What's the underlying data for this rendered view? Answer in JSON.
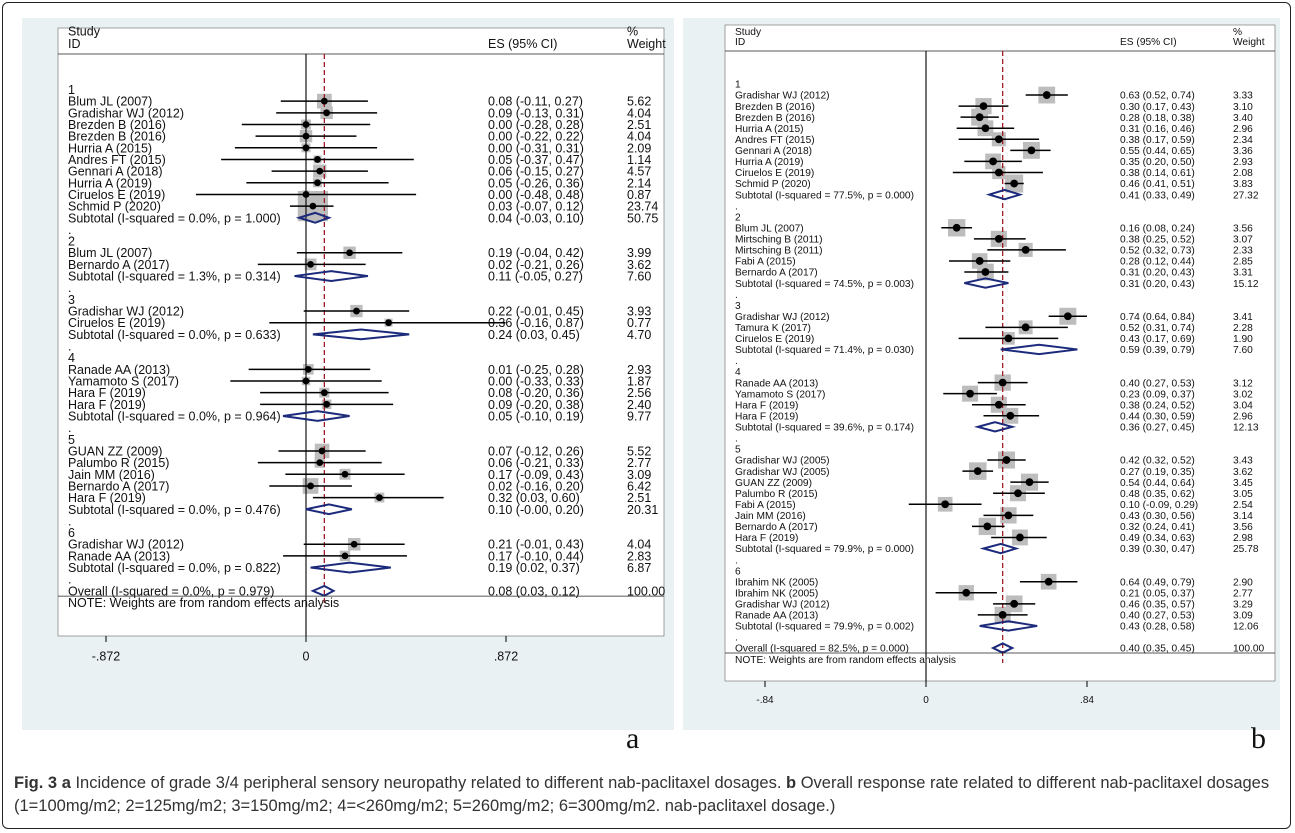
{
  "figure": {
    "caption_label": "Fig. 3",
    "caption_parts": [
      {
        "bold": true,
        "text": "a"
      },
      {
        "bold": false,
        "text": " Incidence of grade 3/4 peripheral sensory neuropathy related to different nab-paclitaxel dosages. "
      },
      {
        "bold": true,
        "text": "b"
      },
      {
        "bold": false,
        "text": " Overall response rate related to different nab-paclitaxel dosages (1=100mg/m2; 2=125mg/m2; 3=150mg/m2; 4=<260mg/m2; 5=260mg/m2; 6=300mg/m2. nab-paclitaxel dosage.)"
      }
    ]
  },
  "colors": {
    "panel_bg": "#eaf1f3",
    "plot_bg": "#ffffff",
    "weight_box": "#bdbdbd",
    "diamond": "#1c2a7c",
    "dashed_line": "#a01c2a",
    "point": "#000000"
  },
  "chart_data": [
    {
      "type": "forest",
      "panel_label": "a",
      "header": {
        "study": "Study",
        "id": "ID",
        "es": "ES (95% CI)",
        "pct": "%",
        "weight": "Weight"
      },
      "xlim": [
        -0.872,
        0.872
      ],
      "ticks": [
        "-.872",
        "0",
        ".872"
      ],
      "tick_values": [
        -0.872,
        0,
        0.872
      ],
      "overall_es": 0.08,
      "note": "NOTE: Weights are from random effects analysis",
      "groups": [
        {
          "label": "1",
          "studies": [
            {
              "name": "Blum JL (2007)",
              "es": 0.08,
              "lo": -0.11,
              "hi": 0.27,
              "ci": "0.08 (-0.11, 0.27)",
              "weight": "5.62"
            },
            {
              "name": "Gradishar WJ (2012)",
              "es": 0.09,
              "lo": -0.13,
              "hi": 0.31,
              "ci": "0.09 (-0.13, 0.31)",
              "weight": "4.04"
            },
            {
              "name": "Brezden B (2016)",
              "es": 0.0,
              "lo": -0.28,
              "hi": 0.28,
              "ci": "0.00 (-0.28, 0.28)",
              "weight": "2.51"
            },
            {
              "name": "Brezden B (2016)",
              "es": 0.0,
              "lo": -0.22,
              "hi": 0.22,
              "ci": "0.00 (-0.22, 0.22)",
              "weight": "4.04"
            },
            {
              "name": "Hurria A (2015)",
              "es": 0.0,
              "lo": -0.31,
              "hi": 0.31,
              "ci": "0.00 (-0.31, 0.31)",
              "weight": "2.09"
            },
            {
              "name": "Andres FT (2015)",
              "es": 0.05,
              "lo": -0.37,
              "hi": 0.47,
              "ci": "0.05 (-0.37, 0.47)",
              "weight": "1.14"
            },
            {
              "name": "Gennari A (2018)",
              "es": 0.06,
              "lo": -0.15,
              "hi": 0.27,
              "ci": "0.06 (-0.15, 0.27)",
              "weight": "4.57"
            },
            {
              "name": "Hurria A (2019)",
              "es": 0.05,
              "lo": -0.26,
              "hi": 0.36,
              "ci": "0.05 (-0.26, 0.36)",
              "weight": "2.14"
            },
            {
              "name": "Ciruelos E (2019)",
              "es": 0.0,
              "lo": -0.48,
              "hi": 0.48,
              "ci": "0.00 (-0.48, 0.48)",
              "weight": "0.87"
            },
            {
              "name": "Schmid P (2020)",
              "es": 0.03,
              "lo": -0.07,
              "hi": 0.12,
              "ci": "0.03 (-0.07, 0.12)",
              "weight": "23.74"
            }
          ],
          "subtotal": {
            "label": "Subtotal  (I-squared = 0.0%, p = 1.000)",
            "es": 0.04,
            "lo": -0.03,
            "hi": 0.1,
            "ci": "0.04 (-0.03, 0.10)",
            "weight": "50.75"
          }
        },
        {
          "label": "2",
          "studies": [
            {
              "name": "Blum JL (2007)",
              "es": 0.19,
              "lo": -0.04,
              "hi": 0.42,
              "ci": "0.19 (-0.04, 0.42)",
              "weight": "3.99"
            },
            {
              "name": "Bernardo A (2017)",
              "es": 0.02,
              "lo": -0.21,
              "hi": 0.26,
              "ci": "0.02 (-0.21, 0.26)",
              "weight": "3.62"
            }
          ],
          "subtotal": {
            "label": "Subtotal  (I-squared = 1.3%, p = 0.314)",
            "es": 0.11,
            "lo": -0.05,
            "hi": 0.27,
            "ci": "0.11 (-0.05, 0.27)",
            "weight": "7.60"
          }
        },
        {
          "label": "3",
          "studies": [
            {
              "name": "Gradishar WJ (2012)",
              "es": 0.22,
              "lo": -0.01,
              "hi": 0.45,
              "ci": "0.22 (-0.01, 0.45)",
              "weight": "3.93"
            },
            {
              "name": "Ciruelos E (2019)",
              "es": 0.36,
              "lo": -0.16,
              "hi": 0.87,
              "ci": "0.36 (-0.16, 0.87)",
              "weight": "0.77"
            }
          ],
          "subtotal": {
            "label": "Subtotal  (I-squared = 0.0%, p = 0.633)",
            "es": 0.24,
            "lo": 0.03,
            "hi": 0.45,
            "ci": "0.24 (0.03, 0.45)",
            "weight": "4.70"
          }
        },
        {
          "label": "4",
          "studies": [
            {
              "name": "Ranade AA (2013)",
              "es": 0.01,
              "lo": -0.25,
              "hi": 0.28,
              "ci": "0.01 (-0.25, 0.28)",
              "weight": "2.93"
            },
            {
              "name": "Yamamoto S (2017)",
              "es": 0.0,
              "lo": -0.33,
              "hi": 0.33,
              "ci": "0.00 (-0.33, 0.33)",
              "weight": "1.87"
            },
            {
              "name": "Hara F (2019)",
              "es": 0.08,
              "lo": -0.2,
              "hi": 0.36,
              "ci": "0.08 (-0.20, 0.36)",
              "weight": "2.56"
            },
            {
              "name": "Hara F (2019)",
              "es": 0.09,
              "lo": -0.2,
              "hi": 0.38,
              "ci": "0.09 (-0.20, 0.38)",
              "weight": "2.40"
            }
          ],
          "subtotal": {
            "label": "Subtotal  (I-squared = 0.0%, p = 0.964)",
            "es": 0.05,
            "lo": -0.1,
            "hi": 0.19,
            "ci": "0.05 (-0.10, 0.19)",
            "weight": "9.77"
          }
        },
        {
          "label": "5",
          "studies": [
            {
              "name": "GUAN ZZ (2009)",
              "es": 0.07,
              "lo": -0.12,
              "hi": 0.26,
              "ci": "0.07 (-0.12, 0.26)",
              "weight": "5.52"
            },
            {
              "name": "Palumbo R (2015)",
              "es": 0.06,
              "lo": -0.21,
              "hi": 0.33,
              "ci": "0.06 (-0.21, 0.33)",
              "weight": "2.77"
            },
            {
              "name": "Jain MM (2016)",
              "es": 0.17,
              "lo": -0.09,
              "hi": 0.43,
              "ci": "0.17 (-0.09, 0.43)",
              "weight": "3.09"
            },
            {
              "name": "Bernardo A (2017)",
              "es": 0.02,
              "lo": -0.16,
              "hi": 0.2,
              "ci": "0.02 (-0.16, 0.20)",
              "weight": "6.42"
            },
            {
              "name": "Hara F (2019)",
              "es": 0.32,
              "lo": 0.03,
              "hi": 0.6,
              "ci": "0.32 (0.03, 0.60)",
              "weight": "2.51"
            }
          ],
          "subtotal": {
            "label": "Subtotal  (I-squared = 0.0%, p = 0.476)",
            "es": 0.1,
            "lo": -0.0,
            "hi": 0.2,
            "ci": "0.10 (-0.00, 0.20)",
            "weight": "20.31"
          }
        },
        {
          "label": "6",
          "studies": [
            {
              "name": "Gradishar WJ (2012)",
              "es": 0.21,
              "lo": -0.01,
              "hi": 0.43,
              "ci": "0.21 (-0.01, 0.43)",
              "weight": "4.04"
            },
            {
              "name": "Ranade AA (2013)",
              "es": 0.17,
              "lo": -0.1,
              "hi": 0.44,
              "ci": "0.17 (-0.10, 0.44)",
              "weight": "2.83"
            }
          ],
          "subtotal": {
            "label": "Subtotal  (I-squared = 0.0%, p = 0.822)",
            "es": 0.19,
            "lo": 0.02,
            "hi": 0.37,
            "ci": "0.19 (0.02, 0.37)",
            "weight": "6.87"
          }
        }
      ],
      "overall": {
        "label": "Overall  (I-squared = 0.0%, p = 0.979)",
        "es": 0.08,
        "lo": 0.03,
        "hi": 0.12,
        "ci": "0.08 (0.03, 0.12)",
        "weight": "100.00"
      }
    },
    {
      "type": "forest",
      "panel_label": "b",
      "header": {
        "study": "Study",
        "id": "ID",
        "es": "ES (95% CI)",
        "pct": "%",
        "weight": "Weight"
      },
      "xlim": [
        -0.84,
        0.84
      ],
      "ticks": [
        "-.84",
        "0",
        ".84"
      ],
      "tick_values": [
        -0.84,
        0,
        0.84
      ],
      "overall_es": 0.4,
      "note": "NOTE: Weights are from random effects analysis",
      "groups": [
        {
          "label": "1",
          "studies": [
            {
              "name": "Gradishar WJ (2012)",
              "es": 0.63,
              "lo": 0.52,
              "hi": 0.74,
              "ci": "0.63 (0.52, 0.74)",
              "weight": "3.33"
            },
            {
              "name": "Brezden B (2016)",
              "es": 0.3,
              "lo": 0.17,
              "hi": 0.43,
              "ci": "0.30 (0.17, 0.43)",
              "weight": "3.10"
            },
            {
              "name": "Brezden B (2016)",
              "es": 0.28,
              "lo": 0.18,
              "hi": 0.38,
              "ci": "0.28 (0.18, 0.38)",
              "weight": "3.40"
            },
            {
              "name": "Hurria A (2015)",
              "es": 0.31,
              "lo": 0.16,
              "hi": 0.46,
              "ci": "0.31 (0.16, 0.46)",
              "weight": "2.96"
            },
            {
              "name": "Andres FT (2015)",
              "es": 0.38,
              "lo": 0.17,
              "hi": 0.59,
              "ci": "0.38 (0.17, 0.59)",
              "weight": "2.34"
            },
            {
              "name": "Gennari A (2018)",
              "es": 0.55,
              "lo": 0.44,
              "hi": 0.65,
              "ci": "0.55 (0.44, 0.65)",
              "weight": "3.36"
            },
            {
              "name": "Hurria A (2019)",
              "es": 0.35,
              "lo": 0.2,
              "hi": 0.5,
              "ci": "0.35 (0.20, 0.50)",
              "weight": "2.93"
            },
            {
              "name": "Ciruelos E (2019)",
              "es": 0.38,
              "lo": 0.14,
              "hi": 0.61,
              "ci": "0.38 (0.14, 0.61)",
              "weight": "2.08"
            },
            {
              "name": "Schmid P (2020)",
              "es": 0.46,
              "lo": 0.41,
              "hi": 0.51,
              "ci": "0.46 (0.41, 0.51)",
              "weight": "3.83"
            }
          ],
          "subtotal": {
            "label": "Subtotal  (I-squared = 77.5%, p = 0.000)",
            "es": 0.41,
            "lo": 0.33,
            "hi": 0.49,
            "ci": "0.41 (0.33, 0.49)",
            "weight": "27.32"
          }
        },
        {
          "label": "2",
          "studies": [
            {
              "name": "Blum JL (2007)",
              "es": 0.16,
              "lo": 0.08,
              "hi": 0.24,
              "ci": "0.16 (0.08, 0.24)",
              "weight": "3.56"
            },
            {
              "name": "Mirtsching B (2011)",
              "es": 0.38,
              "lo": 0.25,
              "hi": 0.52,
              "ci": "0.38 (0.25, 0.52)",
              "weight": "3.07"
            },
            {
              "name": "Mirtsching B (2011)",
              "es": 0.52,
              "lo": 0.32,
              "hi": 0.73,
              "ci": "0.52 (0.32, 0.73)",
              "weight": "2.33"
            },
            {
              "name": "Fabi A (2015)",
              "es": 0.28,
              "lo": 0.12,
              "hi": 0.44,
              "ci": "0.28 (0.12, 0.44)",
              "weight": "2.85"
            },
            {
              "name": "Bernardo A (2017)",
              "es": 0.31,
              "lo": 0.2,
              "hi": 0.43,
              "ci": "0.31 (0.20, 0.43)",
              "weight": "3.31"
            }
          ],
          "subtotal": {
            "label": "Subtotal  (I-squared = 74.5%, p = 0.003)",
            "es": 0.31,
            "lo": 0.2,
            "hi": 0.43,
            "ci": "0.31 (0.20, 0.43)",
            "weight": "15.12"
          }
        },
        {
          "label": "3",
          "studies": [
            {
              "name": "Gradishar WJ (2012)",
              "es": 0.74,
              "lo": 0.64,
              "hi": 0.84,
              "ci": "0.74 (0.64, 0.84)",
              "weight": "3.41"
            },
            {
              "name": "Tamura K (2017)",
              "es": 0.52,
              "lo": 0.31,
              "hi": 0.74,
              "ci": "0.52 (0.31, 0.74)",
              "weight": "2.28"
            },
            {
              "name": "Ciruelos E (2019)",
              "es": 0.43,
              "lo": 0.17,
              "hi": 0.69,
              "ci": "0.43 (0.17, 0.69)",
              "weight": "1.90"
            }
          ],
          "subtotal": {
            "label": "Subtotal  (I-squared = 71.4%, p = 0.030)",
            "es": 0.59,
            "lo": 0.39,
            "hi": 0.79,
            "ci": "0.59 (0.39, 0.79)",
            "weight": "7.60"
          }
        },
        {
          "label": "4",
          "studies": [
            {
              "name": "Ranade AA (2013)",
              "es": 0.4,
              "lo": 0.27,
              "hi": 0.53,
              "ci": "0.40 (0.27, 0.53)",
              "weight": "3.12"
            },
            {
              "name": "Yamamoto S (2017)",
              "es": 0.23,
              "lo": 0.09,
              "hi": 0.37,
              "ci": "0.23 (0.09, 0.37)",
              "weight": "3.02"
            },
            {
              "name": "Hara F (2019)",
              "es": 0.38,
              "lo": 0.24,
              "hi": 0.52,
              "ci": "0.38 (0.24, 0.52)",
              "weight": "3.04"
            },
            {
              "name": "Hara F (2019)",
              "es": 0.44,
              "lo": 0.3,
              "hi": 0.59,
              "ci": "0.44 (0.30, 0.59)",
              "weight": "2.96"
            }
          ],
          "subtotal": {
            "label": "Subtotal  (I-squared = 39.6%, p = 0.174)",
            "es": 0.36,
            "lo": 0.27,
            "hi": 0.45,
            "ci": "0.36 (0.27, 0.45)",
            "weight": "12.13"
          }
        },
        {
          "label": "5",
          "studies": [
            {
              "name": "Gradishar WJ (2005)",
              "es": 0.42,
              "lo": 0.32,
              "hi": 0.52,
              "ci": "0.42 (0.32, 0.52)",
              "weight": "3.43"
            },
            {
              "name": "Gradishar WJ (2005)",
              "es": 0.27,
              "lo": 0.19,
              "hi": 0.35,
              "ci": "0.27 (0.19, 0.35)",
              "weight": "3.62"
            },
            {
              "name": "GUAN ZZ (2009)",
              "es": 0.54,
              "lo": 0.44,
              "hi": 0.64,
              "ci": "0.54 (0.44, 0.64)",
              "weight": "3.45"
            },
            {
              "name": "Palumbo R (2015)",
              "es": 0.48,
              "lo": 0.35,
              "hi": 0.62,
              "ci": "0.48 (0.35, 0.62)",
              "weight": "3.05"
            },
            {
              "name": "Fabi A (2015)",
              "es": 0.1,
              "lo": -0.09,
              "hi": 0.29,
              "ci": "0.10 (-0.09, 0.29)",
              "weight": "2.54"
            },
            {
              "name": "Jain MM (2016)",
              "es": 0.43,
              "lo": 0.3,
              "hi": 0.56,
              "ci": "0.43 (0.30, 0.56)",
              "weight": "3.14"
            },
            {
              "name": "Bernardo A (2017)",
              "es": 0.32,
              "lo": 0.24,
              "hi": 0.41,
              "ci": "0.32 (0.24, 0.41)",
              "weight": "3.56"
            },
            {
              "name": "Hara F (2019)",
              "es": 0.49,
              "lo": 0.34,
              "hi": 0.63,
              "ci": "0.49 (0.34, 0.63)",
              "weight": "2.98"
            }
          ],
          "subtotal": {
            "label": "Subtotal  (I-squared = 79.9%, p = 0.000)",
            "es": 0.39,
            "lo": 0.3,
            "hi": 0.47,
            "ci": "0.39 (0.30, 0.47)",
            "weight": "25.78"
          }
        },
        {
          "label": "6",
          "studies": [
            {
              "name": "Ibrahim NK (2005)",
              "es": 0.64,
              "lo": 0.49,
              "hi": 0.79,
              "ci": "0.64 (0.49, 0.79)",
              "weight": "2.90"
            },
            {
              "name": "Ibrahim NK (2005)",
              "es": 0.21,
              "lo": 0.05,
              "hi": 0.37,
              "ci": "0.21 (0.05, 0.37)",
              "weight": "2.77"
            },
            {
              "name": "Gradishar WJ (2012)",
              "es": 0.46,
              "lo": 0.35,
              "hi": 0.57,
              "ci": "0.46 (0.35, 0.57)",
              "weight": "3.29"
            },
            {
              "name": "Ranade AA (2013)",
              "es": 0.4,
              "lo": 0.27,
              "hi": 0.53,
              "ci": "0.40 (0.27, 0.53)",
              "weight": "3.09"
            }
          ],
          "subtotal": {
            "label": "Subtotal  (I-squared = 79.9%, p = 0.002)",
            "es": 0.43,
            "lo": 0.28,
            "hi": 0.58,
            "ci": "0.43 (0.28, 0.58)",
            "weight": "12.06"
          }
        }
      ],
      "overall": {
        "label": "Overall  (I-squared = 82.5%, p = 0.000)",
        "es": 0.4,
        "lo": 0.35,
        "hi": 0.45,
        "ci": "0.40 (0.35, 0.45)",
        "weight": "100.00"
      }
    }
  ]
}
